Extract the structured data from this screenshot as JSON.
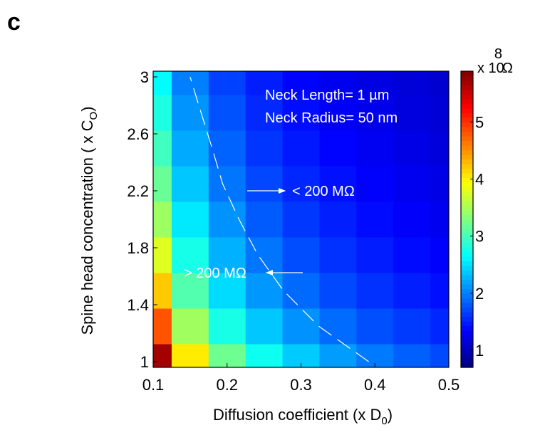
{
  "panel_label": "c",
  "chart_data": {
    "type": "heatmap",
    "x_label": {
      "text": "Diffusion coefficient (x D",
      "sub": "0",
      "end": ")"
    },
    "y_label": {
      "text": "Spine head  concentration ( x C",
      "sub": "O",
      "end": ")"
    },
    "x": [
      0.1,
      0.15,
      0.2,
      0.25,
      0.3,
      0.35,
      0.4,
      0.45,
      0.5
    ],
    "y": [
      1,
      1.25,
      1.5,
      1.75,
      2,
      2.25,
      2.5,
      2.75,
      3
    ],
    "z": [
      [
        5.7,
        4.04,
        3.21,
        2.71,
        2.38,
        2.15,
        1.97,
        1.83,
        1.72
      ],
      [
        4.82,
        3.46,
        2.77,
        2.36,
        2.09,
        1.9,
        1.75,
        1.64,
        1.54
      ],
      [
        4.22,
        3.06,
        2.47,
        2.12,
        1.89,
        1.72,
        1.6,
        1.5,
        1.42
      ],
      [
        3.78,
        2.76,
        2.25,
        1.95,
        1.74,
        1.6,
        1.49,
        1.4,
        1.34
      ],
      [
        3.45,
        2.54,
        2.09,
        1.81,
        1.63,
        1.5,
        1.4,
        1.33,
        1.27
      ],
      [
        3.18,
        2.36,
        1.95,
        1.71,
        1.54,
        1.43,
        1.34,
        1.27,
        1.22
      ],
      [
        2.97,
        2.22,
        1.85,
        1.62,
        1.47,
        1.36,
        1.29,
        1.22,
        1.17
      ],
      [
        2.79,
        2.1,
        1.76,
        1.55,
        1.41,
        1.31,
        1.24,
        1.18,
        1.14
      ],
      [
        2.64,
        2.0,
        1.68,
        1.49,
        1.36,
        1.27,
        1.2,
        1.15,
        1.11
      ]
    ],
    "xlim": [
      0.1,
      0.5
    ],
    "xticks": [
      0.1,
      0.2,
      0.3,
      0.4,
      0.5
    ],
    "ylim": [
      0.96,
      3.04
    ],
    "yticks": [
      1,
      1.4,
      1.8,
      2.2,
      2.6,
      3
    ],
    "colormap": "jet",
    "clim": [
      0.7,
      5.89
    ],
    "cticks": [
      1,
      2,
      3,
      4,
      5
    ],
    "colorbar_label": {
      "prefix": "x 10",
      "exponent": "8",
      "unit": "Ω"
    },
    "contour_level": 2,
    "annotations": [
      "Neck Length= 1 µm",
      "Neck Radius= 50 nm",
      "< 200 MΩ",
      "> 200 MΩ"
    ]
  }
}
